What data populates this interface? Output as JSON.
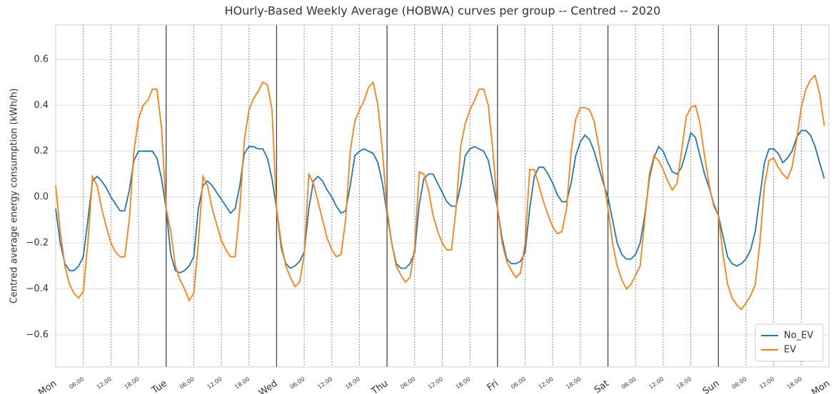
{
  "chart_data": {
    "type": "line",
    "title": "HOurly-Based Weekly Average (HOBWA) curves per group -- Centred -- 2020",
    "y_label": "Centred average energy consumption (kWh/h)",
    "x": [
      0,
      1,
      2,
      3,
      4,
      5,
      6,
      7,
      8,
      9,
      10,
      11,
      12,
      13,
      14,
      15,
      16,
      17,
      18,
      19,
      20,
      21,
      22,
      23,
      24,
      25,
      26,
      27,
      28,
      29,
      30,
      31,
      32,
      33,
      34,
      35,
      36,
      37,
      38,
      39,
      40,
      41,
      42,
      43,
      44,
      45,
      46,
      47,
      48,
      49,
      50,
      51,
      52,
      53,
      54,
      55,
      56,
      57,
      58,
      59,
      60,
      61,
      62,
      63,
      64,
      65,
      66,
      67,
      68,
      69,
      70,
      71,
      72,
      73,
      74,
      75,
      76,
      77,
      78,
      79,
      80,
      81,
      82,
      83,
      84,
      85,
      86,
      87,
      88,
      89,
      90,
      91,
      92,
      93,
      94,
      95,
      96,
      97,
      98,
      99,
      100,
      101,
      102,
      103,
      104,
      105,
      106,
      107,
      108,
      109,
      110,
      111,
      112,
      113,
      114,
      115,
      116,
      117,
      118,
      119,
      120,
      121,
      122,
      123,
      124,
      125,
      126,
      127,
      128,
      129,
      130,
      131,
      132,
      133,
      134,
      135,
      136,
      137,
      138,
      139,
      140,
      141,
      142,
      143,
      144,
      145,
      146,
      147,
      148,
      149,
      150,
      151,
      152,
      153,
      154,
      155,
      156,
      157,
      158,
      159,
      160,
      161,
      162,
      163,
      164,
      165,
      166,
      167
    ],
    "series": [
      {
        "name": "No_EV",
        "color": "#1f77b4",
        "values": [
          -0.05,
          -0.2,
          -0.29,
          -0.32,
          -0.32,
          -0.3,
          -0.26,
          -0.1,
          0.07,
          0.09,
          0.07,
          0.04,
          0.0,
          -0.03,
          -0.06,
          -0.06,
          0.03,
          0.16,
          0.2,
          0.2,
          0.2,
          0.2,
          0.17,
          0.08,
          -0.05,
          -0.25,
          -0.32,
          -0.33,
          -0.32,
          -0.3,
          -0.26,
          -0.05,
          0.05,
          0.07,
          0.05,
          0.02,
          -0.01,
          -0.04,
          -0.07,
          -0.05,
          0.05,
          0.19,
          0.22,
          0.22,
          0.21,
          0.21,
          0.17,
          0.08,
          -0.05,
          -0.22,
          -0.29,
          -0.31,
          -0.3,
          -0.28,
          -0.24,
          -0.05,
          0.07,
          0.09,
          0.07,
          0.03,
          0.0,
          -0.04,
          -0.07,
          -0.06,
          0.05,
          0.18,
          0.2,
          0.21,
          0.2,
          0.19,
          0.15,
          0.06,
          -0.07,
          -0.2,
          -0.29,
          -0.31,
          -0.31,
          -0.29,
          -0.24,
          -0.03,
          0.08,
          0.1,
          0.1,
          0.06,
          0.02,
          -0.02,
          -0.04,
          -0.04,
          0.05,
          0.18,
          0.21,
          0.22,
          0.21,
          0.2,
          0.16,
          0.06,
          -0.05,
          -0.18,
          -0.27,
          -0.29,
          -0.29,
          -0.28,
          -0.24,
          -0.05,
          0.09,
          0.13,
          0.13,
          0.1,
          0.06,
          0.01,
          -0.02,
          -0.02,
          0.06,
          0.18,
          0.24,
          0.27,
          0.25,
          0.2,
          0.13,
          0.06,
          0.0,
          -0.1,
          -0.2,
          -0.25,
          -0.27,
          -0.27,
          -0.25,
          -0.2,
          -0.08,
          0.08,
          0.17,
          0.22,
          0.2,
          0.15,
          0.11,
          0.1,
          0.13,
          0.2,
          0.28,
          0.26,
          0.18,
          0.1,
          0.04,
          -0.03,
          -0.08,
          -0.17,
          -0.26,
          -0.29,
          -0.3,
          -0.29,
          -0.27,
          -0.23,
          -0.15,
          0.0,
          0.15,
          0.21,
          0.21,
          0.19,
          0.15,
          0.17,
          0.2,
          0.26,
          0.29,
          0.29,
          0.27,
          0.22,
          0.15,
          0.08
        ]
      },
      {
        "name": "EV",
        "color": "#ff7f0e",
        "values": [
          0.05,
          -0.15,
          -0.3,
          -0.38,
          -0.42,
          -0.44,
          -0.41,
          -0.2,
          0.09,
          0.05,
          -0.05,
          -0.13,
          -0.2,
          -0.24,
          -0.26,
          -0.26,
          -0.1,
          0.2,
          0.34,
          0.4,
          0.42,
          0.47,
          0.47,
          0.3,
          -0.05,
          -0.15,
          -0.3,
          -0.36,
          -0.4,
          -0.45,
          -0.42,
          -0.2,
          0.09,
          0.05,
          -0.05,
          -0.12,
          -0.19,
          -0.23,
          -0.26,
          -0.26,
          -0.05,
          0.25,
          0.38,
          0.43,
          0.46,
          0.5,
          0.49,
          0.38,
          -0.05,
          -0.2,
          -0.3,
          -0.35,
          -0.39,
          -0.37,
          -0.25,
          0.1,
          0.06,
          -0.02,
          -0.1,
          -0.18,
          -0.23,
          -0.26,
          -0.25,
          -0.1,
          0.2,
          0.33,
          0.38,
          0.42,
          0.48,
          0.5,
          0.4,
          0.2,
          -0.05,
          -0.2,
          -0.3,
          -0.34,
          -0.37,
          -0.35,
          -0.22,
          0.11,
          0.1,
          0.03,
          -0.08,
          -0.15,
          -0.2,
          -0.23,
          -0.23,
          -0.05,
          0.22,
          0.32,
          0.38,
          0.42,
          0.47,
          0.47,
          0.4,
          0.2,
          -0.05,
          -0.2,
          -0.28,
          -0.32,
          -0.35,
          -0.33,
          -0.2,
          0.12,
          0.12,
          0.05,
          -0.02,
          -0.08,
          -0.13,
          -0.16,
          -0.15,
          -0.05,
          0.2,
          0.34,
          0.39,
          0.39,
          0.38,
          0.33,
          0.22,
          0.08,
          -0.05,
          -0.2,
          -0.3,
          -0.36,
          -0.4,
          -0.38,
          -0.34,
          -0.3,
          -0.1,
          0.1,
          0.18,
          0.16,
          0.12,
          0.07,
          0.03,
          0.06,
          0.2,
          0.35,
          0.39,
          0.4,
          0.32,
          0.18,
          0.05,
          -0.04,
          -0.08,
          -0.25,
          -0.38,
          -0.44,
          -0.47,
          -0.49,
          -0.46,
          -0.43,
          -0.38,
          -0.2,
          0.05,
          0.16,
          0.17,
          0.13,
          0.1,
          0.08,
          0.13,
          0.25,
          0.39,
          0.47,
          0.51,
          0.53,
          0.45,
          0.31
        ]
      }
    ],
    "xlim": [
      0,
      168
    ],
    "xticks": [
      {
        "value": 0,
        "label": "Mon"
      },
      {
        "value": 6,
        "label": "06:00"
      },
      {
        "value": 12,
        "label": "12:00"
      },
      {
        "value": 18,
        "label": "18:00"
      },
      {
        "value": 24,
        "label": "Tue"
      },
      {
        "value": 30,
        "label": "06:00"
      },
      {
        "value": 36,
        "label": "12:00"
      },
      {
        "value": 42,
        "label": "18:00"
      },
      {
        "value": 48,
        "label": "Wed"
      },
      {
        "value": 54,
        "label": "06:00"
      },
      {
        "value": 60,
        "label": "12:00"
      },
      {
        "value": 66,
        "label": "18:00"
      },
      {
        "value": 72,
        "label": "Thu"
      },
      {
        "value": 78,
        "label": "06:00"
      },
      {
        "value": 84,
        "label": "12:00"
      },
      {
        "value": 90,
        "label": "18:00"
      },
      {
        "value": 96,
        "label": "Fri"
      },
      {
        "value": 102,
        "label": "06:00"
      },
      {
        "value": 108,
        "label": "12:00"
      },
      {
        "value": 114,
        "label": "18:00"
      },
      {
        "value": 120,
        "label": "Sat"
      },
      {
        "value": 126,
        "label": "06:00"
      },
      {
        "value": 132,
        "label": "12:00"
      },
      {
        "value": 138,
        "label": "18:00"
      },
      {
        "value": 144,
        "label": "Sun"
      },
      {
        "value": 150,
        "label": "06:00"
      },
      {
        "value": 156,
        "label": "12:00"
      },
      {
        "value": 162,
        "label": "18:00"
      },
      {
        "value": 168,
        "label": "Mon"
      }
    ],
    "ylim": [
      -0.74,
      0.75
    ],
    "yticks": [
      {
        "value": -0.6,
        "label": "−0.6"
      },
      {
        "value": -0.4,
        "label": "−0.4"
      },
      {
        "value": -0.2,
        "label": "−0.2"
      },
      {
        "value": 0,
        "label": "0.0"
      },
      0.2,
      0.4,
      0.6
    ],
    "grid": true,
    "legend": "lower right"
  }
}
